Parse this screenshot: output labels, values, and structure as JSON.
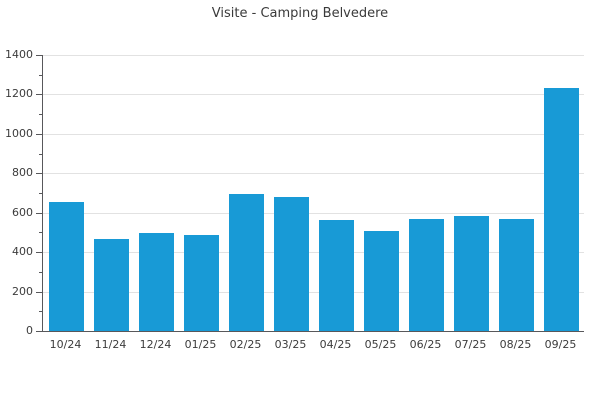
{
  "chart_data": {
    "type": "bar",
    "title": "Visite - Camping Belvedere",
    "categories": [
      "10/24",
      "11/24",
      "12/24",
      "01/25",
      "02/25",
      "03/25",
      "04/25",
      "05/25",
      "06/25",
      "07/25",
      "08/25",
      "09/25"
    ],
    "values": [
      655,
      465,
      495,
      485,
      695,
      680,
      565,
      505,
      570,
      585,
      570,
      1235
    ],
    "xlabel": "",
    "ylabel": "",
    "ylim": [
      0,
      1400
    ],
    "yticks": [
      0,
      200,
      400,
      600,
      800,
      1000,
      1200,
      1400
    ],
    "ytick_interval": 200,
    "minor_tick_interval": 100,
    "legend": "none",
    "grid": "horizontal-major",
    "bar_color": "#189ad6",
    "grid_color": "#e2e2e2",
    "axis_color": "#58585b",
    "text_color": "#3c3c3c",
    "background_color": "#ffffff"
  }
}
